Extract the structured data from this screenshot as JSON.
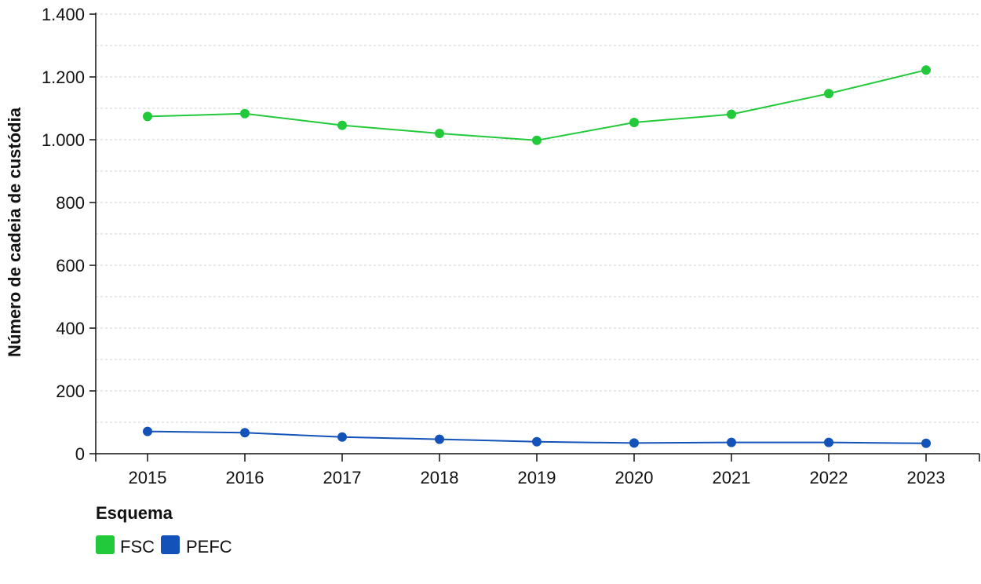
{
  "chart_data": {
    "type": "line",
    "title": "",
    "xlabel": "",
    "ylabel": "Número de cadeia de custódia",
    "x": [
      "2015",
      "2016",
      "2017",
      "2018",
      "2019",
      "2020",
      "2021",
      "2022",
      "2023"
    ],
    "yticks": [
      0,
      200,
      400,
      600,
      800,
      1000,
      1200,
      1400
    ],
    "ytick_labels": [
      "0",
      "200",
      "400",
      "600",
      "800",
      "1.000",
      "1.200",
      "1.400"
    ],
    "ylim": [
      0,
      1400
    ],
    "grid": true,
    "series": [
      {
        "name": "FSC",
        "color": "#22c93b",
        "values": [
          1074,
          1083,
          1046,
          1020,
          998,
          1055,
          1081,
          1147,
          1222
        ]
      },
      {
        "name": "PEFC",
        "color": "#1352b8",
        "values": [
          71,
          67,
          53,
          46,
          38,
          34,
          36,
          36,
          33
        ]
      }
    ],
    "legend": {
      "title": "Esquema",
      "placement": "bottom-left",
      "items": [
        "FSC",
        "PEFC"
      ]
    }
  }
}
